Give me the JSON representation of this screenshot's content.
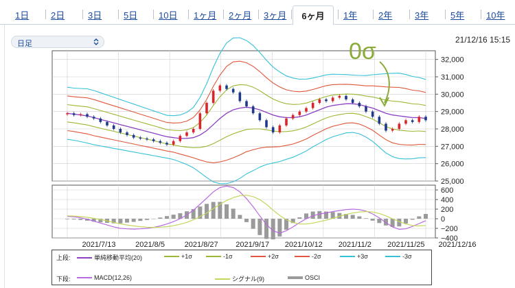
{
  "tabs": [
    {
      "label": "1日"
    },
    {
      "label": "2日"
    },
    {
      "label": "3日"
    },
    {
      "label": "5日"
    },
    {
      "label": "10日"
    },
    {
      "label": "1ヶ月"
    },
    {
      "label": "2ヶ月"
    },
    {
      "label": "3ヶ月"
    },
    {
      "label": "6ヶ月",
      "active": true
    },
    {
      "label": "1年"
    },
    {
      "label": "2年"
    },
    {
      "label": "3年"
    },
    {
      "label": "5年"
    },
    {
      "label": "10年"
    }
  ],
  "controls": {
    "period_select": "日足",
    "datetime": "21/12/16 15:15"
  },
  "annotation": {
    "text": "0σ",
    "color": "#8aab3a"
  },
  "colors": {
    "up_candle": "#d8262c",
    "down_candle": "#1f3a8a",
    "sma": "#8a3fc4",
    "sigma1": "#9ab832",
    "sigma2": "#e0563a",
    "sigma3": "#35c1d8",
    "macd": "#b86ae0",
    "signal": "#c5d65a",
    "osci": "#9a9a9a"
  },
  "chart_data": [
    {
      "type": "candlestick",
      "panel": "upper",
      "x_labels": [
        "2021/7/13",
        "2021/8/5",
        "2021/8/27",
        "2021/9/17",
        "2021/10/12",
        "2021/11/2",
        "2021/11/25",
        "2021/12/16"
      ],
      "ylim": [
        25000,
        32500
      ],
      "y_ticks": [
        "25,000",
        "26,000",
        "27,000",
        "28,000",
        "29,000",
        "30,000",
        "31,000",
        "32,000"
      ],
      "grid": true,
      "close": [
        28900,
        28800,
        28850,
        28700,
        28600,
        28400,
        28200,
        28000,
        27800,
        27650,
        27500,
        27450,
        27400,
        27300,
        27200,
        27100,
        27300,
        27600,
        27800,
        28000,
        28900,
        29500,
        30200,
        30500,
        30300,
        30100,
        29600,
        29300,
        28900,
        28500,
        28100,
        27800,
        28200,
        28600,
        28800,
        29000,
        29200,
        29500,
        29700,
        29600,
        29800,
        29900,
        29700,
        29500,
        29300,
        29000,
        28700,
        28300,
        27900,
        28000,
        28300,
        28500,
        28400,
        28700,
        28500
      ],
      "sma20": [
        28900,
        28850,
        28800,
        28750,
        28650,
        28550,
        28450,
        28350,
        28250,
        28150,
        28050,
        27950,
        27850,
        27750,
        27650,
        27550,
        27500,
        27450,
        27450,
        27500,
        27650,
        27900,
        28250,
        28600,
        28900,
        29100,
        29200,
        29250,
        29200,
        29100,
        28950,
        28800,
        28700,
        28650,
        28650,
        28700,
        28800,
        28950,
        29100,
        29250,
        29350,
        29400,
        29450,
        29450,
        29400,
        29300,
        29200,
        29050,
        28900,
        28800,
        28750,
        28700,
        28650,
        28650,
        28600
      ],
      "band_width": [
        500,
        500,
        510,
        520,
        520,
        510,
        500,
        490,
        480,
        470,
        460,
        450,
        440,
        430,
        420,
        410,
        420,
        450,
        500,
        580,
        720,
        900,
        1100,
        1250,
        1350,
        1380,
        1350,
        1280,
        1200,
        1100,
        1000,
        920,
        860,
        800,
        760,
        720,
        690,
        660,
        640,
        620,
        600,
        580,
        560,
        550,
        560,
        590,
        640,
        700,
        760,
        800,
        820,
        810,
        790,
        770,
        750
      ]
    },
    {
      "type": "line",
      "panel": "lower",
      "ylim": [
        -400,
        700
      ],
      "y_ticks": [
        "600",
        "400",
        "200",
        "0",
        "−200",
        "−400"
      ],
      "grid": true,
      "series": [
        {
          "name": "MACD(12,26)",
          "values": [
            50,
            40,
            20,
            -10,
            -50,
            -90,
            -130,
            -170,
            -200,
            -210,
            -215,
            -210,
            -200,
            -180,
            -150,
            -110,
            -60,
            0,
            80,
            180,
            300,
            430,
            560,
            650,
            680,
            650,
            560,
            420,
            250,
            60,
            -120,
            -250,
            -300,
            -250,
            -170,
            -80,
            0,
            60,
            100,
            120,
            150,
            170,
            190,
            200,
            190,
            160,
            100,
            20,
            -80,
            -170,
            -220,
            -210,
            -160,
            -100,
            -40
          ]
        },
        {
          "name": "シグナル(9)",
          "values": [
            60,
            55,
            45,
            30,
            10,
            -15,
            -45,
            -75,
            -105,
            -130,
            -150,
            -165,
            -175,
            -180,
            -175,
            -165,
            -145,
            -115,
            -75,
            -20,
            45,
            120,
            210,
            300,
            380,
            440,
            480,
            490,
            460,
            400,
            300,
            180,
            70,
            -20,
            -80,
            -110,
            -110,
            -90,
            -60,
            -30,
            10,
            50,
            90,
            120,
            140,
            150,
            140,
            110,
            60,
            0,
            -60,
            -110,
            -140,
            -150,
            -140
          ]
        }
      ],
      "osci": [
        -10,
        -15,
        -25,
        -40,
        -60,
        -75,
        -85,
        -95,
        -95,
        -80,
        -65,
        -45,
        -25,
        0,
        25,
        55,
        85,
        115,
        155,
        200,
        255,
        310,
        350,
        350,
        300,
        210,
        80,
        -70,
        -210,
        -340,
        -420,
        -430,
        -370,
        -230,
        -90,
        30,
        110,
        150,
        160,
        150,
        140,
        120,
        100,
        80,
        50,
        10,
        -40,
        -90,
        -140,
        -170,
        -160,
        -100,
        -20,
        50,
        100
      ]
    }
  ],
  "legend": {
    "upper": {
      "head": "上段:",
      "items": [
        {
          "name": "単純移動平均(20)",
          "color": "#8a3fc4"
        },
        {
          "name": "+1σ",
          "color": "#9ab832"
        },
        {
          "name": "-1σ",
          "color": "#9ab832"
        },
        {
          "name": "+2σ",
          "color": "#e0563a"
        },
        {
          "name": "-2σ",
          "color": "#e0563a"
        },
        {
          "name": "+3σ",
          "color": "#35c1d8"
        },
        {
          "name": "-3σ",
          "color": "#35c1d8"
        }
      ]
    },
    "lower": {
      "head": "下段:",
      "items": [
        {
          "name": "MACD(12,26)",
          "color": "#b86ae0"
        },
        {
          "name": "シグナル(9)",
          "color": "#c5d65a"
        },
        {
          "name": "OSCI",
          "color": "#9a9a9a",
          "thick": true
        }
      ]
    }
  }
}
